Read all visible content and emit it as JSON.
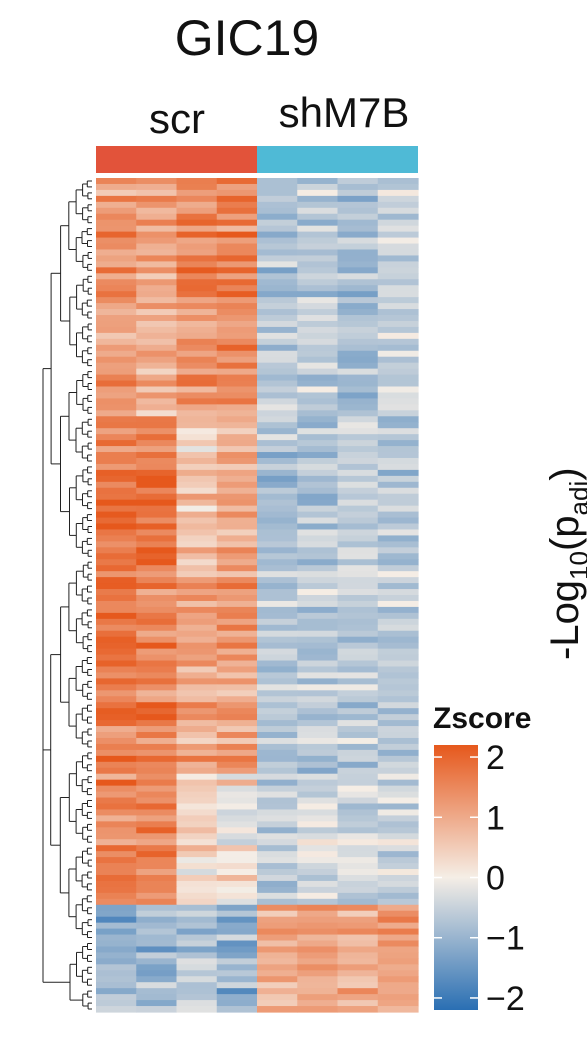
{
  "chart_data": {
    "type": "heatmap",
    "title": "GIC19",
    "groups": [
      {
        "name": "scr",
        "color": "#E2533A"
      },
      {
        "name": "shM7B",
        "color": "#4FBAD6"
      }
    ],
    "columns_per_group": 4,
    "n_rows": 140,
    "dendrogram": "rows",
    "legend": {
      "title": "Zscore",
      "ticks": [
        "2",
        "1",
        "0",
        "−1",
        "−2"
      ],
      "tick_values": [
        2,
        1,
        0,
        -1,
        -2
      ],
      "range": [
        -2.2,
        2.2
      ],
      "placement": "bottom-right"
    },
    "colorscale": {
      "low": "#2A6FB3",
      "mid": "#F5EEE6",
      "high": "#E6581C"
    },
    "block_means": [
      {
        "rows": [
          0,
          40
        ],
        "scr": [
          1.2,
          1.0,
          1.4,
          1.5
        ],
        "shM7B": [
          -0.7,
          -0.6,
          -0.8,
          -0.5
        ]
      },
      {
        "rows": [
          40,
          65
        ],
        "scr": [
          1.7,
          1.8,
          0.6,
          1.0
        ],
        "shM7B": [
          -0.8,
          -0.7,
          -0.5,
          -0.7
        ]
      },
      {
        "rows": [
          65,
          100
        ],
        "scr": [
          1.6,
          1.5,
          1.0,
          1.1
        ],
        "shM7B": [
          -0.7,
          -0.6,
          -0.6,
          -0.6
        ]
      },
      {
        "rows": [
          100,
          122
        ],
        "scr": [
          1.5,
          1.6,
          0.3,
          0.2
        ],
        "shM7B": [
          -0.6,
          -0.3,
          -0.5,
          -0.5
        ]
      },
      {
        "rows": [
          122,
          140
        ],
        "scr": [
          -1.1,
          -1.0,
          -0.7,
          -1.1
        ],
        "shM7B": [
          1.0,
          1.1,
          1.0,
          1.2
        ]
      }
    ],
    "right_axis_label_partial": "-Log10(padj)"
  }
}
